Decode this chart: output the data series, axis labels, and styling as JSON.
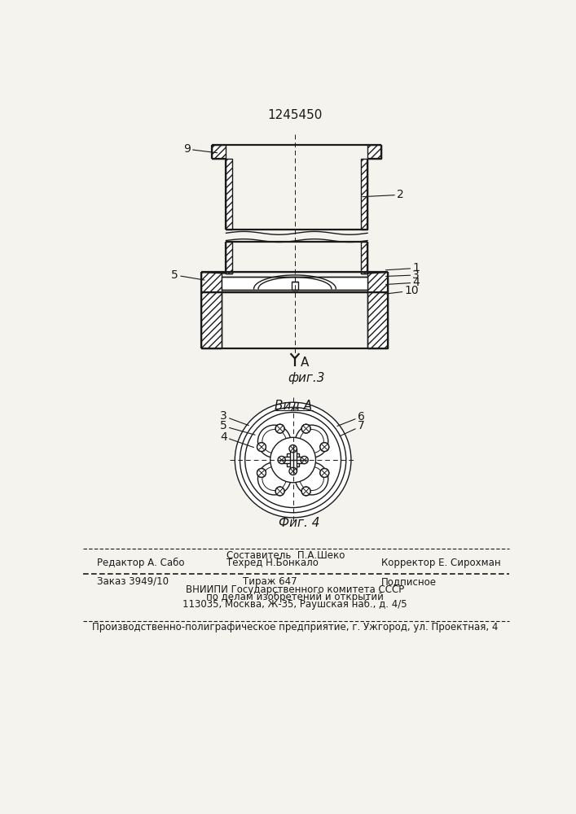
{
  "title": "1245450",
  "fig3_label": "фиг.3",
  "fig4_label": "Фиг. 4",
  "vid_a_label": "Вид А",
  "arrow_a_label": "A",
  "bg_color": "#f5f3ee",
  "line_color": "#1a1a1a",
  "footer": {
    "row1_left": "Редактор А. Сабо",
    "row1_mid_top": "Составитель  П.А.Шеко",
    "row1_mid_bot": "Техред Н.Бонкало",
    "row1_right": "Корректор Е. Сирохман",
    "row2_col1": "Заказ 3949/10",
    "row2_col2": "Тираж 647",
    "row2_col3": "Подписное",
    "row3": "ВНИИПИ Государственного комитета СССР",
    "row4": "по делам изобретений и открытий",
    "row5": "113035, Москва, Ж-35, Раушская наб., д. 4/5",
    "row6": "Производственно-полиграфическое предприятие, г. Ужгород, ул. Проектная, 4"
  }
}
